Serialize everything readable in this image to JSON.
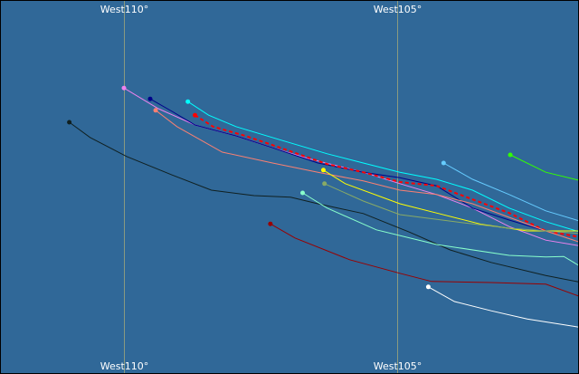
{
  "map": {
    "background": "#306898",
    "gridline_color": "#8a9a80",
    "meridians": [
      {
        "lon": -110,
        "label": "West110°"
      },
      {
        "lon": -105,
        "label": "West105°"
      }
    ],
    "tracks": [
      {
        "color": "#102020",
        "points": [
          [
            -111.0,
            19.75
          ],
          [
            -110.62,
            19.47
          ],
          [
            -109.95,
            19.12
          ],
          [
            -109.12,
            18.78
          ],
          [
            -108.4,
            18.5
          ],
          [
            -107.62,
            18.4
          ],
          [
            -106.95,
            18.37
          ],
          [
            -106.45,
            18.25
          ],
          [
            -105.62,
            18.07
          ],
          [
            -104.78,
            17.73
          ],
          [
            -104.03,
            17.4
          ],
          [
            -103.28,
            17.17
          ],
          [
            -102.28,
            16.93
          ],
          [
            -101.62,
            16.8
          ]
        ]
      },
      {
        "color": "#ee82ee",
        "points": [
          [
            -110.0,
            20.38
          ],
          [
            -109.37,
            20.0
          ],
          [
            -108.7,
            19.7
          ],
          [
            -107.95,
            19.5
          ],
          [
            -107.28,
            19.28
          ],
          [
            -106.62,
            19.08
          ],
          [
            -105.62,
            18.83
          ],
          [
            -104.95,
            18.62
          ],
          [
            -104.28,
            18.42
          ],
          [
            -103.62,
            18.17
          ],
          [
            -102.95,
            17.83
          ],
          [
            -102.28,
            17.58
          ],
          [
            -101.62,
            17.47
          ]
        ]
      },
      {
        "color": "#00008b",
        "points": [
          [
            -109.52,
            20.18
          ],
          [
            -109.12,
            19.95
          ],
          [
            -108.7,
            19.7
          ],
          [
            -107.95,
            19.5
          ],
          [
            -107.28,
            19.28
          ],
          [
            -106.45,
            19.0
          ],
          [
            -105.62,
            18.83
          ],
          [
            -104.95,
            18.73
          ],
          [
            -104.28,
            18.58
          ],
          [
            -103.62,
            18.17
          ],
          [
            -102.95,
            17.95
          ],
          [
            -102.28,
            17.75
          ],
          [
            -101.62,
            17.75
          ]
        ]
      },
      {
        "color": "#00ffff",
        "points": [
          [
            -108.83,
            20.13
          ],
          [
            -108.45,
            19.88
          ],
          [
            -107.95,
            19.67
          ],
          [
            -107.12,
            19.42
          ],
          [
            -106.28,
            19.17
          ],
          [
            -105.62,
            19.0
          ],
          [
            -104.95,
            18.83
          ],
          [
            -104.28,
            18.7
          ],
          [
            -103.62,
            18.5
          ],
          [
            -102.95,
            18.17
          ],
          [
            -102.28,
            17.92
          ],
          [
            -101.62,
            17.72
          ]
        ]
      },
      {
        "color": "#ff0000",
        "dashed": true,
        "points": [
          [
            -108.7,
            19.88
          ],
          [
            -108.37,
            19.67
          ],
          [
            -107.78,
            19.5
          ],
          [
            -107.28,
            19.33
          ],
          [
            -106.28,
            18.98
          ],
          [
            -105.62,
            18.83
          ],
          [
            -104.95,
            18.65
          ],
          [
            -104.28,
            18.58
          ],
          [
            -103.62,
            18.33
          ],
          [
            -102.95,
            18.08
          ],
          [
            -102.28,
            17.75
          ],
          [
            -101.62,
            17.63
          ]
        ]
      },
      {
        "color": "#fa8072",
        "points": [
          [
            -109.42,
            19.97
          ],
          [
            -109.03,
            19.67
          ],
          [
            -108.2,
            19.2
          ],
          [
            -107.28,
            19.0
          ],
          [
            -106.45,
            18.83
          ],
          [
            -105.62,
            18.67
          ],
          [
            -104.95,
            18.5
          ],
          [
            -104.28,
            18.42
          ],
          [
            -103.62,
            18.25
          ],
          [
            -102.95,
            18.0
          ],
          [
            -102.28,
            17.75
          ],
          [
            -101.62,
            17.53
          ]
        ]
      },
      {
        "color": "#66ccff",
        "points": [
          [
            -104.15,
            19.0
          ],
          [
            -103.62,
            18.7
          ],
          [
            -102.95,
            18.42
          ],
          [
            -102.28,
            18.12
          ],
          [
            -101.62,
            17.92
          ]
        ]
      },
      {
        "color": "#33ff00",
        "points": [
          [
            -102.93,
            19.15
          ],
          [
            -102.28,
            18.83
          ],
          [
            -101.62,
            18.67
          ]
        ]
      },
      {
        "color": "#ffff00",
        "points": [
          [
            -106.35,
            18.87
          ],
          [
            -105.95,
            18.62
          ],
          [
            -104.95,
            18.25
          ],
          [
            -104.28,
            18.08
          ],
          [
            -103.45,
            17.87
          ],
          [
            -102.62,
            17.75
          ],
          [
            -101.62,
            17.75
          ]
        ]
      },
      {
        "color": "#88aa66",
        "points": [
          [
            -106.33,
            18.62
          ],
          [
            -105.62,
            18.3
          ],
          [
            -104.95,
            18.05
          ],
          [
            -103.95,
            17.92
          ],
          [
            -102.95,
            17.8
          ],
          [
            -101.62,
            17.7
          ]
        ]
      },
      {
        "color": "#88ffcc",
        "points": [
          [
            -106.73,
            18.45
          ],
          [
            -106.28,
            18.17
          ],
          [
            -105.38,
            17.77
          ],
          [
            -104.28,
            17.5
          ],
          [
            -102.95,
            17.3
          ],
          [
            -102.28,
            17.27
          ],
          [
            -101.95,
            17.28
          ],
          [
            -101.62,
            17.08
          ]
        ]
      },
      {
        "color": "#990000",
        "points": [
          [
            -107.32,
            17.88
          ],
          [
            -106.87,
            17.62
          ],
          [
            -105.87,
            17.22
          ],
          [
            -104.95,
            16.97
          ],
          [
            -104.37,
            16.82
          ],
          [
            -103.28,
            16.8
          ],
          [
            -102.28,
            16.77
          ],
          [
            -101.62,
            16.53
          ]
        ]
      },
      {
        "color": "#ffffff",
        "points": [
          [
            -104.43,
            16.72
          ],
          [
            -103.95,
            16.45
          ],
          [
            -103.28,
            16.28
          ],
          [
            -102.62,
            16.13
          ],
          [
            -101.62,
            15.97
          ]
        ]
      }
    ]
  }
}
